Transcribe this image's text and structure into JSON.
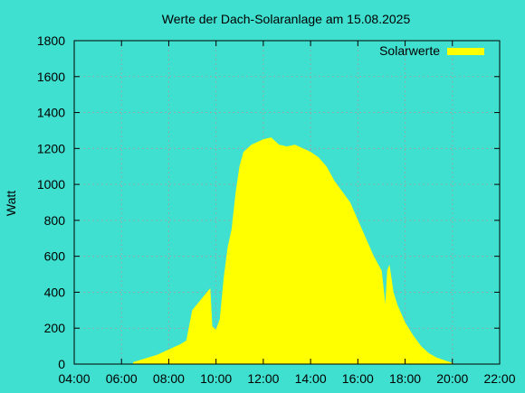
{
  "chart_data": {
    "type": "area",
    "title": "Werte der Dach-Solaranlage am 15.08.2025",
    "xlabel": "",
    "ylabel": "Watt",
    "xlim": [
      "04:00",
      "22:00"
    ],
    "ylim": [
      0,
      1800
    ],
    "x_ticks": [
      "04:00",
      "06:00",
      "08:00",
      "10:00",
      "12:00",
      "14:00",
      "16:00",
      "18:00",
      "20:00",
      "22:00"
    ],
    "y_ticks": [
      "0",
      "200",
      "400",
      "600",
      "800",
      "1000",
      "1200",
      "1400",
      "1600",
      "1800"
    ],
    "grid": true,
    "legend": "top-right",
    "colors": {
      "background": "#40e0d0",
      "series": "#ffff00",
      "grid": "#a0a0a0",
      "axis": "#000000"
    },
    "series": [
      {
        "name": "Solarwerte",
        "x": [
          "06:30",
          "07:00",
          "07:30",
          "08:00",
          "08:30",
          "08:45",
          "09:00",
          "09:15",
          "09:30",
          "09:45",
          "09:50",
          "10:00",
          "10:10",
          "10:20",
          "10:30",
          "10:40",
          "10:50",
          "11:00",
          "11:10",
          "11:20",
          "11:30",
          "11:40",
          "11:50",
          "12:00",
          "12:20",
          "12:40",
          "13:00",
          "13:20",
          "13:40",
          "14:00",
          "14:20",
          "14:40",
          "15:00",
          "15:20",
          "15:40",
          "16:00",
          "16:20",
          "16:40",
          "17:00",
          "17:10",
          "17:15",
          "17:20",
          "17:30",
          "17:40",
          "17:50",
          "18:00",
          "18:20",
          "18:40",
          "19:00",
          "19:20",
          "19:40",
          "20:00",
          "20:05"
        ],
        "values": [
          10,
          30,
          50,
          80,
          110,
          130,
          300,
          340,
          380,
          420,
          210,
          190,
          250,
          480,
          650,
          750,
          950,
          1100,
          1180,
          1200,
          1220,
          1230,
          1240,
          1250,
          1260,
          1220,
          1210,
          1220,
          1200,
          1180,
          1150,
          1100,
          1020,
          960,
          900,
          800,
          700,
          600,
          520,
          320,
          520,
          550,
          400,
          330,
          280,
          230,
          160,
          100,
          60,
          35,
          20,
          5,
          0
        ]
      }
    ]
  }
}
